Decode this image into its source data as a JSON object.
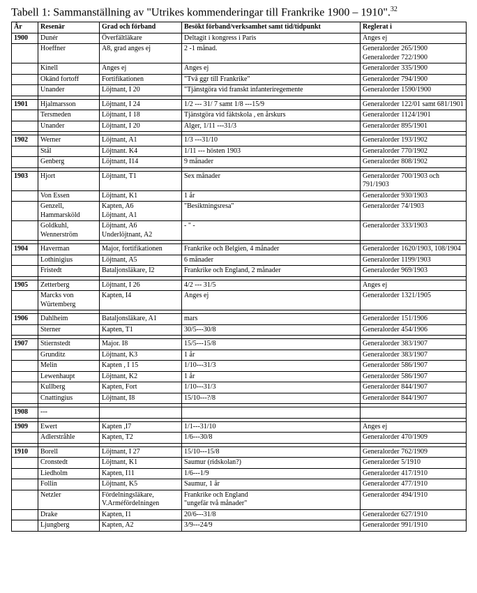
{
  "title_prefix": "Tabell 1: Sammanställning av \"Utrikes kommenderingar till Frankrike 1900 – 1910\".",
  "title_sup": "32",
  "headers": {
    "year": "År",
    "name": "Resenär",
    "grade": "Grad och förband",
    "visit": "Besökt förband/verksamhet samt tid/tidpunkt",
    "reg": "Reglerat i"
  },
  "rows": [
    {
      "year": "1900",
      "name": "Dunér",
      "grade": "Överfältläkare",
      "visit": "Deltagit i kongress i Paris",
      "reg": "Anges ej"
    },
    {
      "year": "",
      "name": "Hoeffner",
      "grade": "A8, grad anges ej",
      "visit": "2 -1 månad.",
      "reg": "Generalorder 265/1900\nGeneralorder 722/1900"
    },
    {
      "year": "",
      "name": "Kinell",
      "grade": "Anges ej",
      "visit": "Anges ej",
      "reg": "Generalorder 335/1900"
    },
    {
      "year": "",
      "name": "Okänd fortoff",
      "grade": "Fortifikationen",
      "visit": "\"Två ggr till Frankrike\"",
      "reg": "Generalorder 794/1900"
    },
    {
      "year": "",
      "name": "Unander",
      "grade": "Löjtnant, I 20",
      "visit": "\"Tjänstgöra vid franskt infanteriregemente",
      "reg": "Generalorder 1590/1900"
    },
    {
      "spacer": true
    },
    {
      "year": "1901",
      "name": "Hjalmarsson",
      "grade": "Löjtnant, I 24",
      "visit": "1/2 --- 31/ 7 samt 1/8 ---15/9",
      "reg": "Generalorder 122/01 samt 681/1901"
    },
    {
      "year": "",
      "name": "Tersmeden",
      "grade": "Löjtnant, I 18",
      "visit": "Tjänstgöra vid fäktskola , en årskurs",
      "reg": "Generalorder 1124/1901"
    },
    {
      "year": "",
      "name": "Unander",
      "grade": "Löjtnant, I 20",
      "visit": "Alger, 1/11 ---31/3",
      "reg": "Generalorder 895/1901"
    },
    {
      "spacer": true
    },
    {
      "year": "1902",
      "name": "Werner",
      "grade": "Löjtnant, A1",
      "visit": "1/3 ---31/10",
      "reg": "Generalorder 193/1902"
    },
    {
      "year": "",
      "name": "Stål",
      "grade": "Löjtnant. K4",
      "visit": "1/11 --- hösten 1903",
      "reg": "Generalorder 770/1902"
    },
    {
      "year": "",
      "name": "Genberg",
      "grade": "Löjtnant, I14",
      "visit": "9 månader",
      "reg": "Generalorder 808/1902"
    },
    {
      "spacer": true
    },
    {
      "year": "1903",
      "name": "Hjort",
      "grade": "Löjtnant, T1",
      "visit": "Sex månader",
      "reg": "Generalorder 700/1903 och 791/1903"
    },
    {
      "year": "",
      "name": "Von Essen",
      "grade": "Löjtnant, K1",
      "visit": "1 år",
      "reg": "Generalorder 930/1903"
    },
    {
      "year": "",
      "name": "Genzell,\nHammarsköld",
      "grade": "Kapten, A6\nLöjtnant, A1",
      "visit": "\"Besiktningsresa\"",
      "reg": "Generalorder 74/1903"
    },
    {
      "year": "",
      "name": "Goldkuhl,\nWennerström",
      "grade": "Löjtnant, A6\nUnderlöjtnant, A2",
      "visit": "- \" -",
      "reg": "Generalorder 333/1903"
    },
    {
      "spacer": true
    },
    {
      "year": "1904",
      "name": "Haverman",
      "grade": "Major, fortifikationen",
      "visit": "Frankrike och Belgien, 4 månader",
      "reg": "Generalorder 1620/1903, 108/1904"
    },
    {
      "year": "",
      "name": "Lothinigius",
      "grade": "Löjtnant, A5",
      "visit": "6 månader",
      "reg": "Generalorder 1199/1903"
    },
    {
      "year": "",
      "name": "Fristedt",
      "grade": "Bataljonsläkare, I2",
      "visit": "Frankrike och England, 2 månader",
      "reg": "Generalorder 969/1903"
    },
    {
      "spacer": true
    },
    {
      "year": "1905",
      "name": "Zetterberg",
      "grade": "Löjtnant, I 26",
      "visit": "4/2 --- 31/5",
      "reg": "Anges ej"
    },
    {
      "year": "",
      "name": "Marcks von\nWürtemberg",
      "grade": "Kapten, I4",
      "visit": "Anges ej",
      "reg": "Generalorder 1321/1905"
    },
    {
      "spacer": true
    },
    {
      "year": "1906",
      "name": "Dahlheim",
      "grade": "Bataljonsläkare, A1",
      "visit": "mars",
      "reg": "Generalorder 151/1906"
    },
    {
      "year": "",
      "name": "Sterner",
      "grade": "Kapten, T1",
      "visit": "30/5---30/8",
      "reg": "Generalorder 454/1906"
    },
    {
      "spacer": true
    },
    {
      "year": "1907",
      "name": "Stiernstedt",
      "grade": "Major. I8",
      "visit": "15/5---15/8",
      "reg": "Generalorder 383/1907"
    },
    {
      "year": "",
      "name": "Grunditz",
      "grade": "Löjtnant, K3",
      "visit": "1 år",
      "reg": "Generalorder 383/1907"
    },
    {
      "year": "",
      "name": "Melin",
      "grade": "Kapten , I 15",
      "visit": "1/10---31/3",
      "reg": "Generalorder 586/1907"
    },
    {
      "year": "",
      "name": "Lewenhaupt",
      "grade": "Löjtnant, K2",
      "visit": "1 år",
      "reg": "Generalorder 586/1907"
    },
    {
      "year": "",
      "name": "Kullberg",
      "grade": "Kapten, Fort",
      "visit": "1/10---31/3",
      "reg": "Generalorder 844/1907"
    },
    {
      "year": "",
      "name": "Cnattingius",
      "grade": "Löjtnant, I8",
      "visit": "15/10---?/8",
      "reg": "Generalorder 844/1907"
    },
    {
      "spacer": true
    },
    {
      "year": "1908",
      "name": "---",
      "grade": "",
      "visit": "",
      "reg": ""
    },
    {
      "spacer": true
    },
    {
      "year": "1909",
      "name": "Ewert",
      "grade": "Kapten ,I7",
      "visit": "1/1---31/10",
      "reg": "Anges ej"
    },
    {
      "year": "",
      "name": "Adlerstråhle",
      "grade": "Kapten, T2",
      "visit": "1/6---30/8",
      "reg": "Generalorder 470/1909"
    },
    {
      "spacer": true
    },
    {
      "year": "1910",
      "name": "Borell",
      "grade": "Löjtnant, I 27",
      "visit": "15/10---15/8",
      "reg": "Generalorder 762/1909"
    },
    {
      "year": "",
      "name": "Cronstedt",
      "grade": "Löjtnant, K1",
      "visit": "Saumur (ridskolan?)",
      "reg": "Generalorder 5/1910"
    },
    {
      "year": "",
      "name": "Liedholm",
      "grade": "Kapten, I11",
      "visit": "1/6---1/9",
      "reg": "Generalorder 417/1910"
    },
    {
      "year": "",
      "name": "Follin",
      "grade": "Löjtnant, K5",
      "visit": "Saumur, 1 år",
      "reg": "Generalorder 477/1910"
    },
    {
      "year": "",
      "name": "Netzler",
      "grade": "Fördelningsläkare,\nV.Arméfördelningen",
      "visit": "Frankrike och England\n\"ungefär två månader\"",
      "reg": "Generalorder 494/1910"
    },
    {
      "year": "",
      "name": "Drake",
      "grade": "Kapten, I1",
      "visit": "20/6---31/8",
      "reg": "Generalorder 627/1910"
    },
    {
      "year": "",
      "name": "Ljungberg",
      "grade": "Kapten, A2",
      "visit": "3/9---24/9",
      "reg": "Generalorder 991/1910"
    }
  ]
}
